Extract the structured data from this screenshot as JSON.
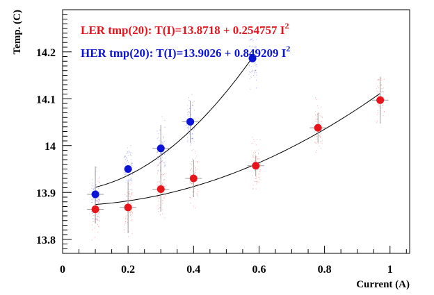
{
  "chart_data": {
    "type": "scatter",
    "title": "",
    "xlabel": "Current (A)",
    "ylabel": "Temp. (C)",
    "xlim": [
      0,
      1.06
    ],
    "ylim": [
      13.77,
      14.29
    ],
    "xticks": [
      0,
      0.2,
      0.4,
      0.6,
      0.8,
      1
    ],
    "xtick_labels": [
      "0",
      "0.2",
      "0.4",
      "0.6",
      "0.8",
      "1"
    ],
    "yticks": [
      13.8,
      13.9,
      14.0,
      14.1,
      14.2
    ],
    "ytick_labels": [
      "13.8",
      "13.9",
      "14",
      "14.1",
      "14.2"
    ],
    "grid": false,
    "series": [
      {
        "name": "LER",
        "color": "#e8141c",
        "x": [
          0.1,
          0.2,
          0.3,
          0.4,
          0.59,
          0.78,
          0.97
        ],
        "y": [
          13.864,
          13.868,
          13.907,
          13.93,
          13.957,
          14.038,
          14.097
        ],
        "yerr": [
          0.03,
          0.055,
          0.048,
          0.04,
          0.022,
          0.032,
          0.05
        ],
        "fit": {
          "a": 13.8718,
          "b": 0.254757,
          "x_range": [
            0.1,
            0.97
          ]
        },
        "label_prefix": "LER tmp(20): T(I)=13.8718 + 0.254757 I",
        "label_sup": "2"
      },
      {
        "name": "HER",
        "color": "#0b14d6",
        "x": [
          0.1,
          0.2,
          0.3,
          0.39,
          0.58
        ],
        "y": [
          13.896,
          13.95,
          13.994,
          14.051,
          14.186
        ],
        "yerr": [
          0.06,
          0.0,
          0.05,
          0.045,
          0.0
        ],
        "fit": {
          "a": 13.9026,
          "b": 0.849209,
          "x_range": [
            0.1,
            0.58
          ]
        },
        "label_prefix": "HER tmp(20): T(I)=13.9026 + 0.849209 I",
        "label_sup": "2"
      }
    ]
  }
}
